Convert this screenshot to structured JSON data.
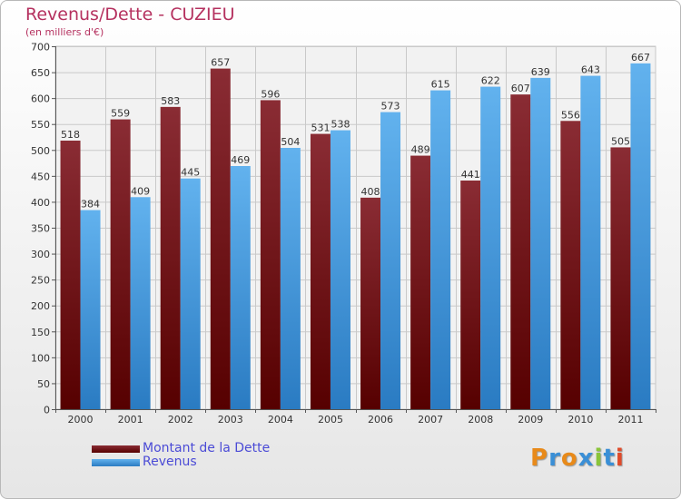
{
  "title": "Revenus/Dette - CUZIEU",
  "subtitle": "(en milliers d'€)",
  "logo": {
    "text": "Proxiti",
    "letters": [
      {
        "char": "P",
        "color": "#e88a1a"
      },
      {
        "char": "r",
        "color": "#3a8fd6"
      },
      {
        "char": "o",
        "color": "#e88a1a"
      },
      {
        "char": "x",
        "color": "#3a8fd6"
      },
      {
        "char": "i",
        "color": "#8ac43a"
      },
      {
        "char": "t",
        "color": "#3a8fd6"
      },
      {
        "char": "i",
        "color": "#e04b2a"
      }
    ]
  },
  "colors": {
    "dette_top": "#8a2c34",
    "dette_bottom": "#560000",
    "revenus_top": "#62b2ee",
    "revenus_bottom": "#2a7bc2",
    "title": "#b5315f",
    "legend_text": "#4b4bd6"
  },
  "chart_data": {
    "type": "bar",
    "title": "Revenus/Dette - CUZIEU",
    "subtitle": "(en milliers d'€)",
    "categories": [
      "2000",
      "2001",
      "2002",
      "2003",
      "2004",
      "2005",
      "2006",
      "2007",
      "2008",
      "2009",
      "2010",
      "2011"
    ],
    "series": [
      {
        "name": "Montant de la Dette",
        "values": [
          518,
          559,
          583,
          657,
          596,
          531,
          408,
          489,
          441,
          607,
          556,
          505
        ]
      },
      {
        "name": "Revenus",
        "values": [
          384,
          409,
          445,
          469,
          504,
          538,
          573,
          615,
          622,
          639,
          643,
          667
        ]
      }
    ],
    "ylim": [
      0,
      700
    ],
    "yticks": [
      0,
      50,
      100,
      150,
      200,
      250,
      300,
      350,
      400,
      450,
      500,
      550,
      600,
      650,
      700
    ],
    "grid": true,
    "legend_position": "bottom-left"
  }
}
